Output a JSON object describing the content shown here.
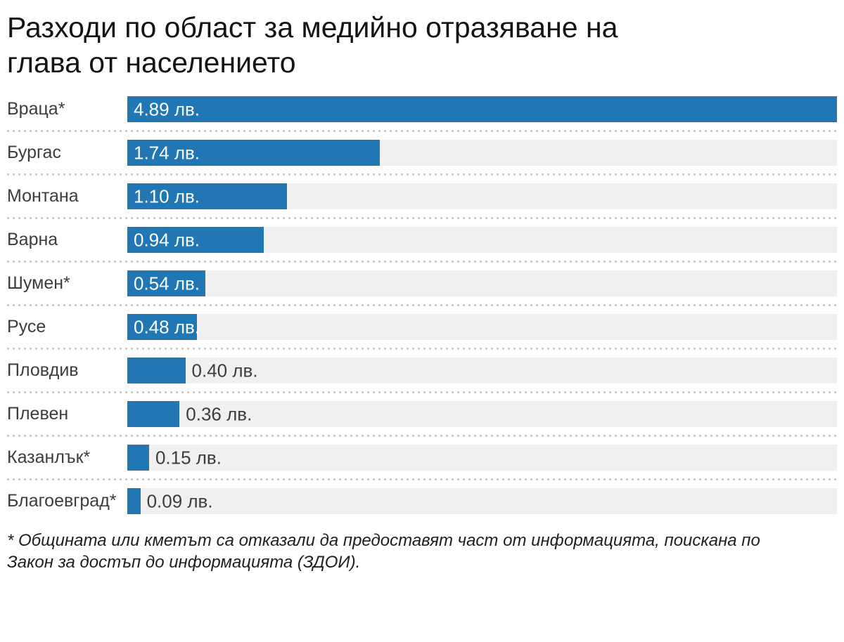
{
  "page": {
    "title": "Разходи по област за медийно отразяване на глава от населението",
    "title_lines": [
      "Разходи по област за медийно отразяване на",
      "глава от населението"
    ],
    "footnote": "* Общината или кметът са отказали да предоставят част от информацията, поискана по Закон за достъп до информацията (ЗДОИ).",
    "footnote_lines": [
      "* Общината или кметът са отказали да предоставят част от информацията, поискана по",
      "Закон за достъп до информацията (ЗДОИ)."
    ],
    "colors": {
      "bar_blue": "#2177b4",
      "track_gray": "#f0f0f0",
      "separator_gray": "#cccccc",
      "title_text": "#141414",
      "label_text": "#3d3d3d",
      "value_inside_text": "#ffffff"
    }
  },
  "chart_data": {
    "type": "bar",
    "orientation": "horizontal",
    "title": "Разходи по област за медийно отразяване на глава от населението",
    "categories": [
      "Враца*",
      "Бургас",
      "Монтана",
      "Варна",
      "Шумен*",
      "Русе",
      "Пловдив",
      "Плевен",
      "Казанлък*",
      "Благоевград*"
    ],
    "values": [
      4.89,
      1.74,
      1.1,
      0.94,
      0.54,
      0.48,
      0.4,
      0.36,
      0.15,
      0.09
    ],
    "value_labels": [
      "4.89 лв.",
      "1.74 лв.",
      "1.10 лв.",
      "0.94 лв.",
      "0.54 лв.",
      "0.48 лв.",
      "0.40 лв.",
      "0.36 лв.",
      "0.15 лв.",
      "0.09 лв."
    ],
    "unit": "лв.",
    "xlim": [
      0,
      4.89
    ],
    "grid": false,
    "legend": false,
    "value_label_placement_note": "white label inside bar when bar is wide enough, dark label right of bar otherwise"
  }
}
